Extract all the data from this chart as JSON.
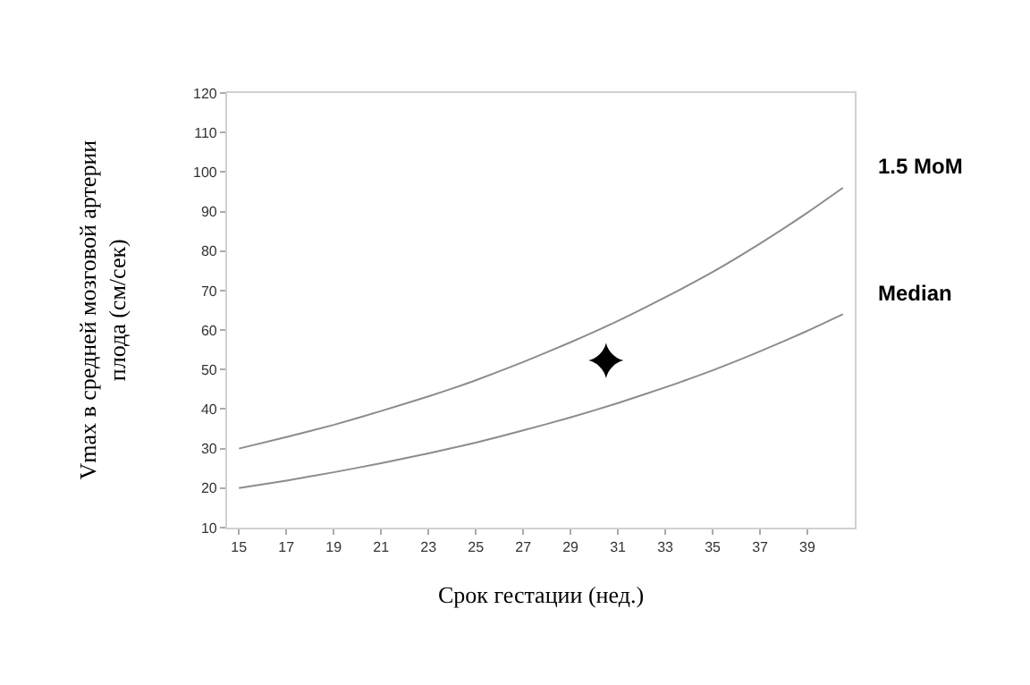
{
  "chart_data": {
    "type": "line",
    "xlabel": "Срок гестации (нед.)",
    "ylabel": "Vmax в средней мозговой артерии плода (см/сек)",
    "xlim": [
      14.5,
      41
    ],
    "xticks": [
      15,
      17,
      19,
      21,
      23,
      25,
      27,
      29,
      31,
      33,
      35,
      37,
      39
    ],
    "ylim": [
      10,
      120
    ],
    "yticks": [
      10,
      20,
      30,
      40,
      50,
      60,
      70,
      80,
      90,
      100,
      110,
      120
    ],
    "grid": false,
    "legend": false,
    "marker": "none",
    "line_style": "solid",
    "series": [
      {
        "name": "1.5 MoM",
        "color": "#8c8c8c",
        "x": [
          15,
          17,
          19,
          21,
          23,
          25,
          27,
          29,
          31,
          33,
          35,
          37,
          39,
          40.5
        ],
        "values": [
          30,
          32.9,
          36,
          39.5,
          43.2,
          47.3,
          51.9,
          56.9,
          62.3,
          68.3,
          74.7,
          81.9,
          89.7,
          96
        ]
      },
      {
        "name": "Median",
        "color": "#8c8c8c",
        "x": [
          15,
          17,
          19,
          21,
          23,
          25,
          27,
          29,
          31,
          33,
          35,
          37,
          39,
          40.5
        ],
        "values": [
          20,
          21.9,
          24,
          26.3,
          28.8,
          31.5,
          34.6,
          37.9,
          41.5,
          45.5,
          49.8,
          54.6,
          59.8,
          64
        ]
      },
      {
        "type": "scatter",
        "marker": "star",
        "color": "#000000",
        "x": [
          30.5
        ],
        "values": [
          52.3
        ]
      }
    ]
  }
}
